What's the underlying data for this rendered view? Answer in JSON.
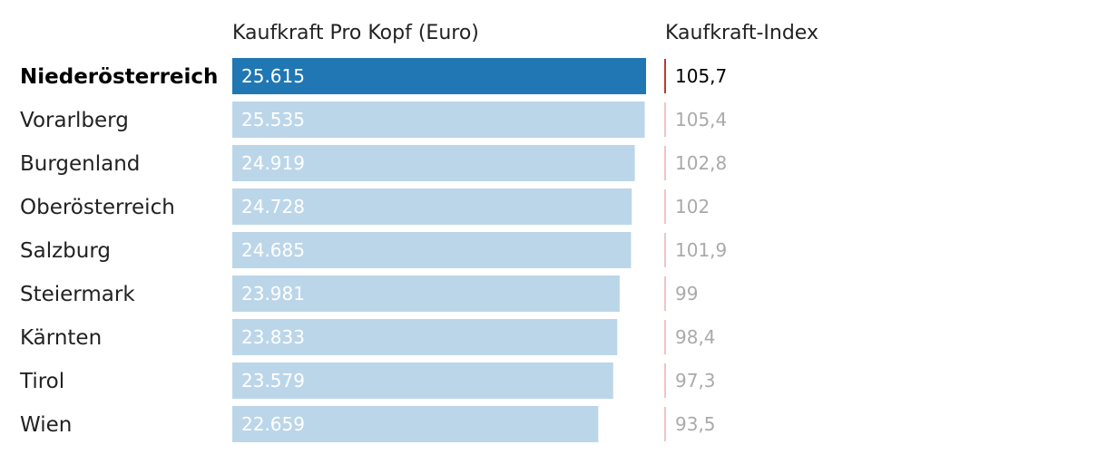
{
  "chart_data": {
    "type": "bar",
    "orientation": "horizontal",
    "headers": {
      "values": "Kaufkraft Pro Kopf (Euro)",
      "index": "Kaufkraft-Index"
    },
    "highlight": "Niederösterreich",
    "xlim": [
      0,
      25615
    ],
    "categories": [
      "Niederösterreich",
      "Vorarlberg",
      "Burgenland",
      "Oberösterreich",
      "Salzburg",
      "Steiermark",
      "Kärnten",
      "Tirol",
      "Wien"
    ],
    "values": [
      25615,
      25535,
      24919,
      24728,
      24685,
      23981,
      23833,
      23579,
      22659
    ],
    "value_labels": [
      "25.615",
      "25.535",
      "24.919",
      "24.728",
      "24.685",
      "23.981",
      "23.833",
      "23.579",
      "22.659"
    ],
    "index_values": [
      105.7,
      105.4,
      102.8,
      102,
      101.9,
      99,
      98.4,
      97.3,
      93.5
    ],
    "index_labels": [
      "105,7",
      "105,4",
      "102,8",
      "102",
      "101,9",
      "99",
      "98,4",
      "97,3",
      "93,5"
    ],
    "colors": {
      "highlight_bar": "#2077b4",
      "bar": "#bcd6e9",
      "bar_label": "#ffffff",
      "highlight_text": "#000000",
      "text": "#222222",
      "index_text": "#aaaaaa",
      "highlight_index_line": "#c0392b",
      "index_line": "#f2c4c4"
    }
  }
}
